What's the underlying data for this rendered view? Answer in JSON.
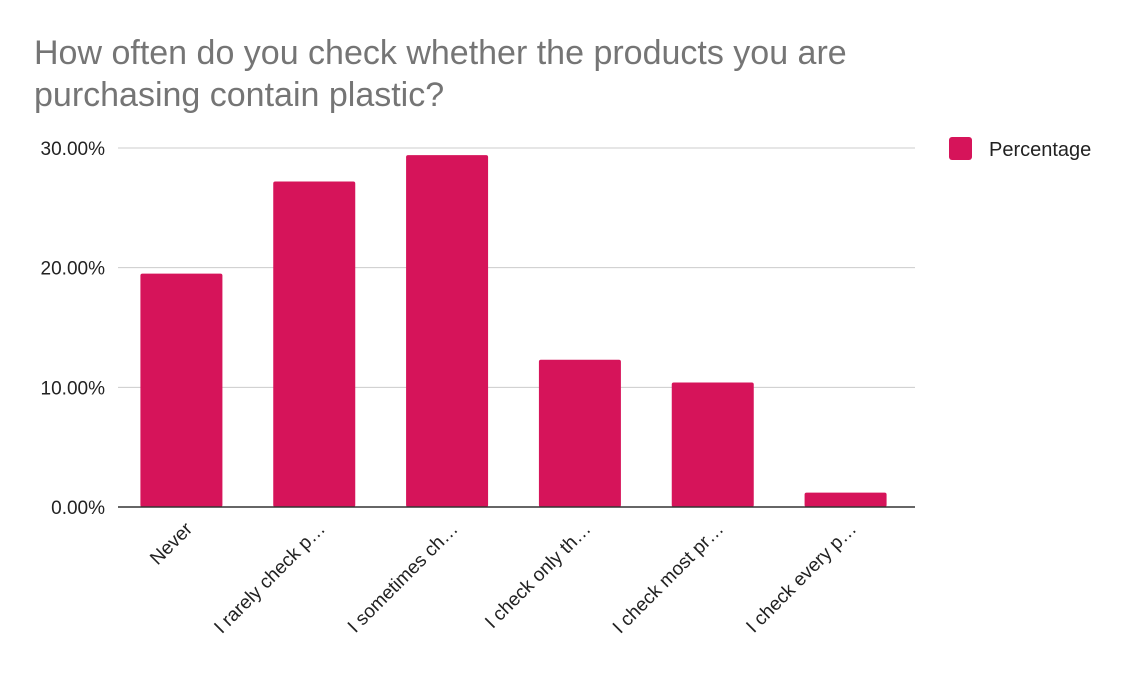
{
  "chart_data": {
    "type": "bar",
    "title": "How often do you check whether the products you are purchasing contain plastic?",
    "xlabel": "",
    "ylabel": "",
    "categories": [
      "Never",
      "I rarely check p…",
      "I sometimes ch…",
      "I check only th…",
      "I check most pr…",
      "I check every p…"
    ],
    "series": [
      {
        "name": "Percentage",
        "values": [
          19.5,
          27.2,
          29.4,
          12.3,
          10.4,
          1.2
        ],
        "color": "#d6145a"
      }
    ],
    "ylim": [
      0,
      30
    ],
    "yticks": [
      "0.00%",
      "10.00%",
      "20.00%",
      "30.00%"
    ],
    "ytick_values": [
      0,
      10,
      20,
      30
    ],
    "grid": true,
    "legend_position": "right"
  }
}
